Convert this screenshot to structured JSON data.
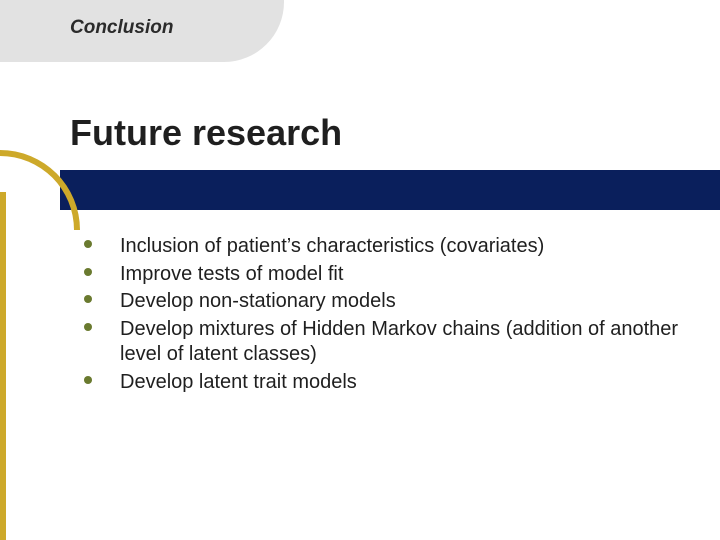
{
  "colors": {
    "tab_bg": "#e2e2e2",
    "section_label": "#2b2b2b",
    "band": "#0a1f5c",
    "accent": "#cda92a",
    "title": "#1f1f1f",
    "body_text": "#1f1f1f",
    "bullet": "#6a7a2f"
  },
  "fontsizes": {
    "section_label": 19,
    "title": 36,
    "body": 20
  },
  "section_label": "Conclusion",
  "title": "Future research",
  "bullets": [
    "Inclusion of patient’s characteristics (covariates)",
    "Improve tests of model fit",
    "Develop non-stationary models",
    "Develop mixtures of Hidden Markov chains (addition of another level of latent classes)",
    "Develop latent trait models"
  ]
}
